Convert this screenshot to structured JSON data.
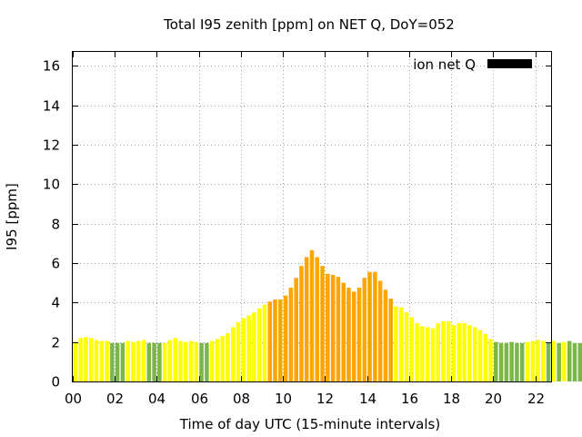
{
  "chart_data": {
    "type": "bar",
    "title": "Total I95 zenith [ppm] on NET Q, DoY=052",
    "xlabel": "Time of day UTC (15-minute intervals)",
    "ylabel": "I95 [ppm]",
    "legend": {
      "label": "ion net Q",
      "color": "#000000",
      "placement": "top-right"
    },
    "xlim": [
      0,
      22.75
    ],
    "ylim": [
      0,
      16.7
    ],
    "x_ticks": [
      "00",
      "02",
      "04",
      "06",
      "08",
      "10",
      "12",
      "14",
      "16",
      "18",
      "20",
      "22"
    ],
    "y_ticks": [
      "0",
      "2",
      "4",
      "6",
      "8",
      "10",
      "12",
      "14",
      "16"
    ],
    "grid": true,
    "interval_hours": 0.25,
    "category_colors": {
      "green": "#7ab648",
      "yellow": "#ffff00",
      "orange": "#ffa500"
    },
    "values": [
      2.0,
      2.2,
      2.25,
      2.2,
      2.1,
      2.05,
      2.05,
      1.95,
      1.95,
      1.95,
      2.05,
      2.0,
      2.05,
      2.1,
      1.95,
      1.95,
      1.95,
      1.95,
      2.1,
      2.2,
      2.05,
      2.0,
      2.05,
      2.0,
      1.95,
      1.95,
      2.05,
      2.15,
      2.3,
      2.45,
      2.75,
      3.0,
      3.2,
      3.35,
      3.5,
      3.7,
      3.9,
      4.05,
      4.15,
      4.15,
      4.35,
      4.75,
      5.25,
      5.85,
      6.3,
      6.65,
      6.3,
      5.85,
      5.45,
      5.4,
      5.3,
      5.0,
      4.75,
      4.55,
      4.75,
      5.25,
      5.55,
      5.55,
      5.1,
      4.65,
      4.2,
      3.8,
      3.75,
      3.5,
      3.25,
      2.95,
      2.8,
      2.75,
      2.7,
      2.95,
      3.05,
      3.05,
      2.85,
      2.95,
      2.95,
      2.85,
      2.75,
      2.6,
      2.4,
      2.15,
      2.0,
      1.95,
      1.95,
      2.0,
      1.95,
      1.95,
      2.0,
      2.05,
      2.1,
      2.05,
      1.95,
      2.05,
      1.95,
      2.0,
      2.05,
      1.95,
      1.95,
      1.95,
      2.0,
      2.05
    ],
    "colors": [
      "yellow",
      "yellow",
      "yellow",
      "yellow",
      "yellow",
      "yellow",
      "yellow",
      "green",
      "green",
      "green",
      "yellow",
      "yellow",
      "yellow",
      "yellow",
      "green",
      "green",
      "green",
      "yellow",
      "yellow",
      "yellow",
      "yellow",
      "yellow",
      "yellow",
      "yellow",
      "green",
      "green",
      "yellow",
      "yellow",
      "yellow",
      "yellow",
      "yellow",
      "yellow",
      "yellow",
      "yellow",
      "yellow",
      "yellow",
      "yellow",
      "orange",
      "orange",
      "orange",
      "orange",
      "orange",
      "orange",
      "orange",
      "orange",
      "orange",
      "orange",
      "orange",
      "orange",
      "orange",
      "orange",
      "orange",
      "orange",
      "orange",
      "orange",
      "orange",
      "orange",
      "orange",
      "orange",
      "orange",
      "orange",
      "yellow",
      "yellow",
      "yellow",
      "yellow",
      "yellow",
      "yellow",
      "yellow",
      "yellow",
      "yellow",
      "yellow",
      "yellow",
      "yellow",
      "yellow",
      "yellow",
      "yellow",
      "yellow",
      "yellow",
      "yellow",
      "yellow",
      "green",
      "green",
      "green",
      "green",
      "green",
      "green",
      "yellow",
      "yellow",
      "yellow",
      "yellow",
      "green",
      "yellow",
      "green",
      "yellow",
      "green",
      "green",
      "green",
      "green",
      "yellow",
      "yellow"
    ]
  }
}
